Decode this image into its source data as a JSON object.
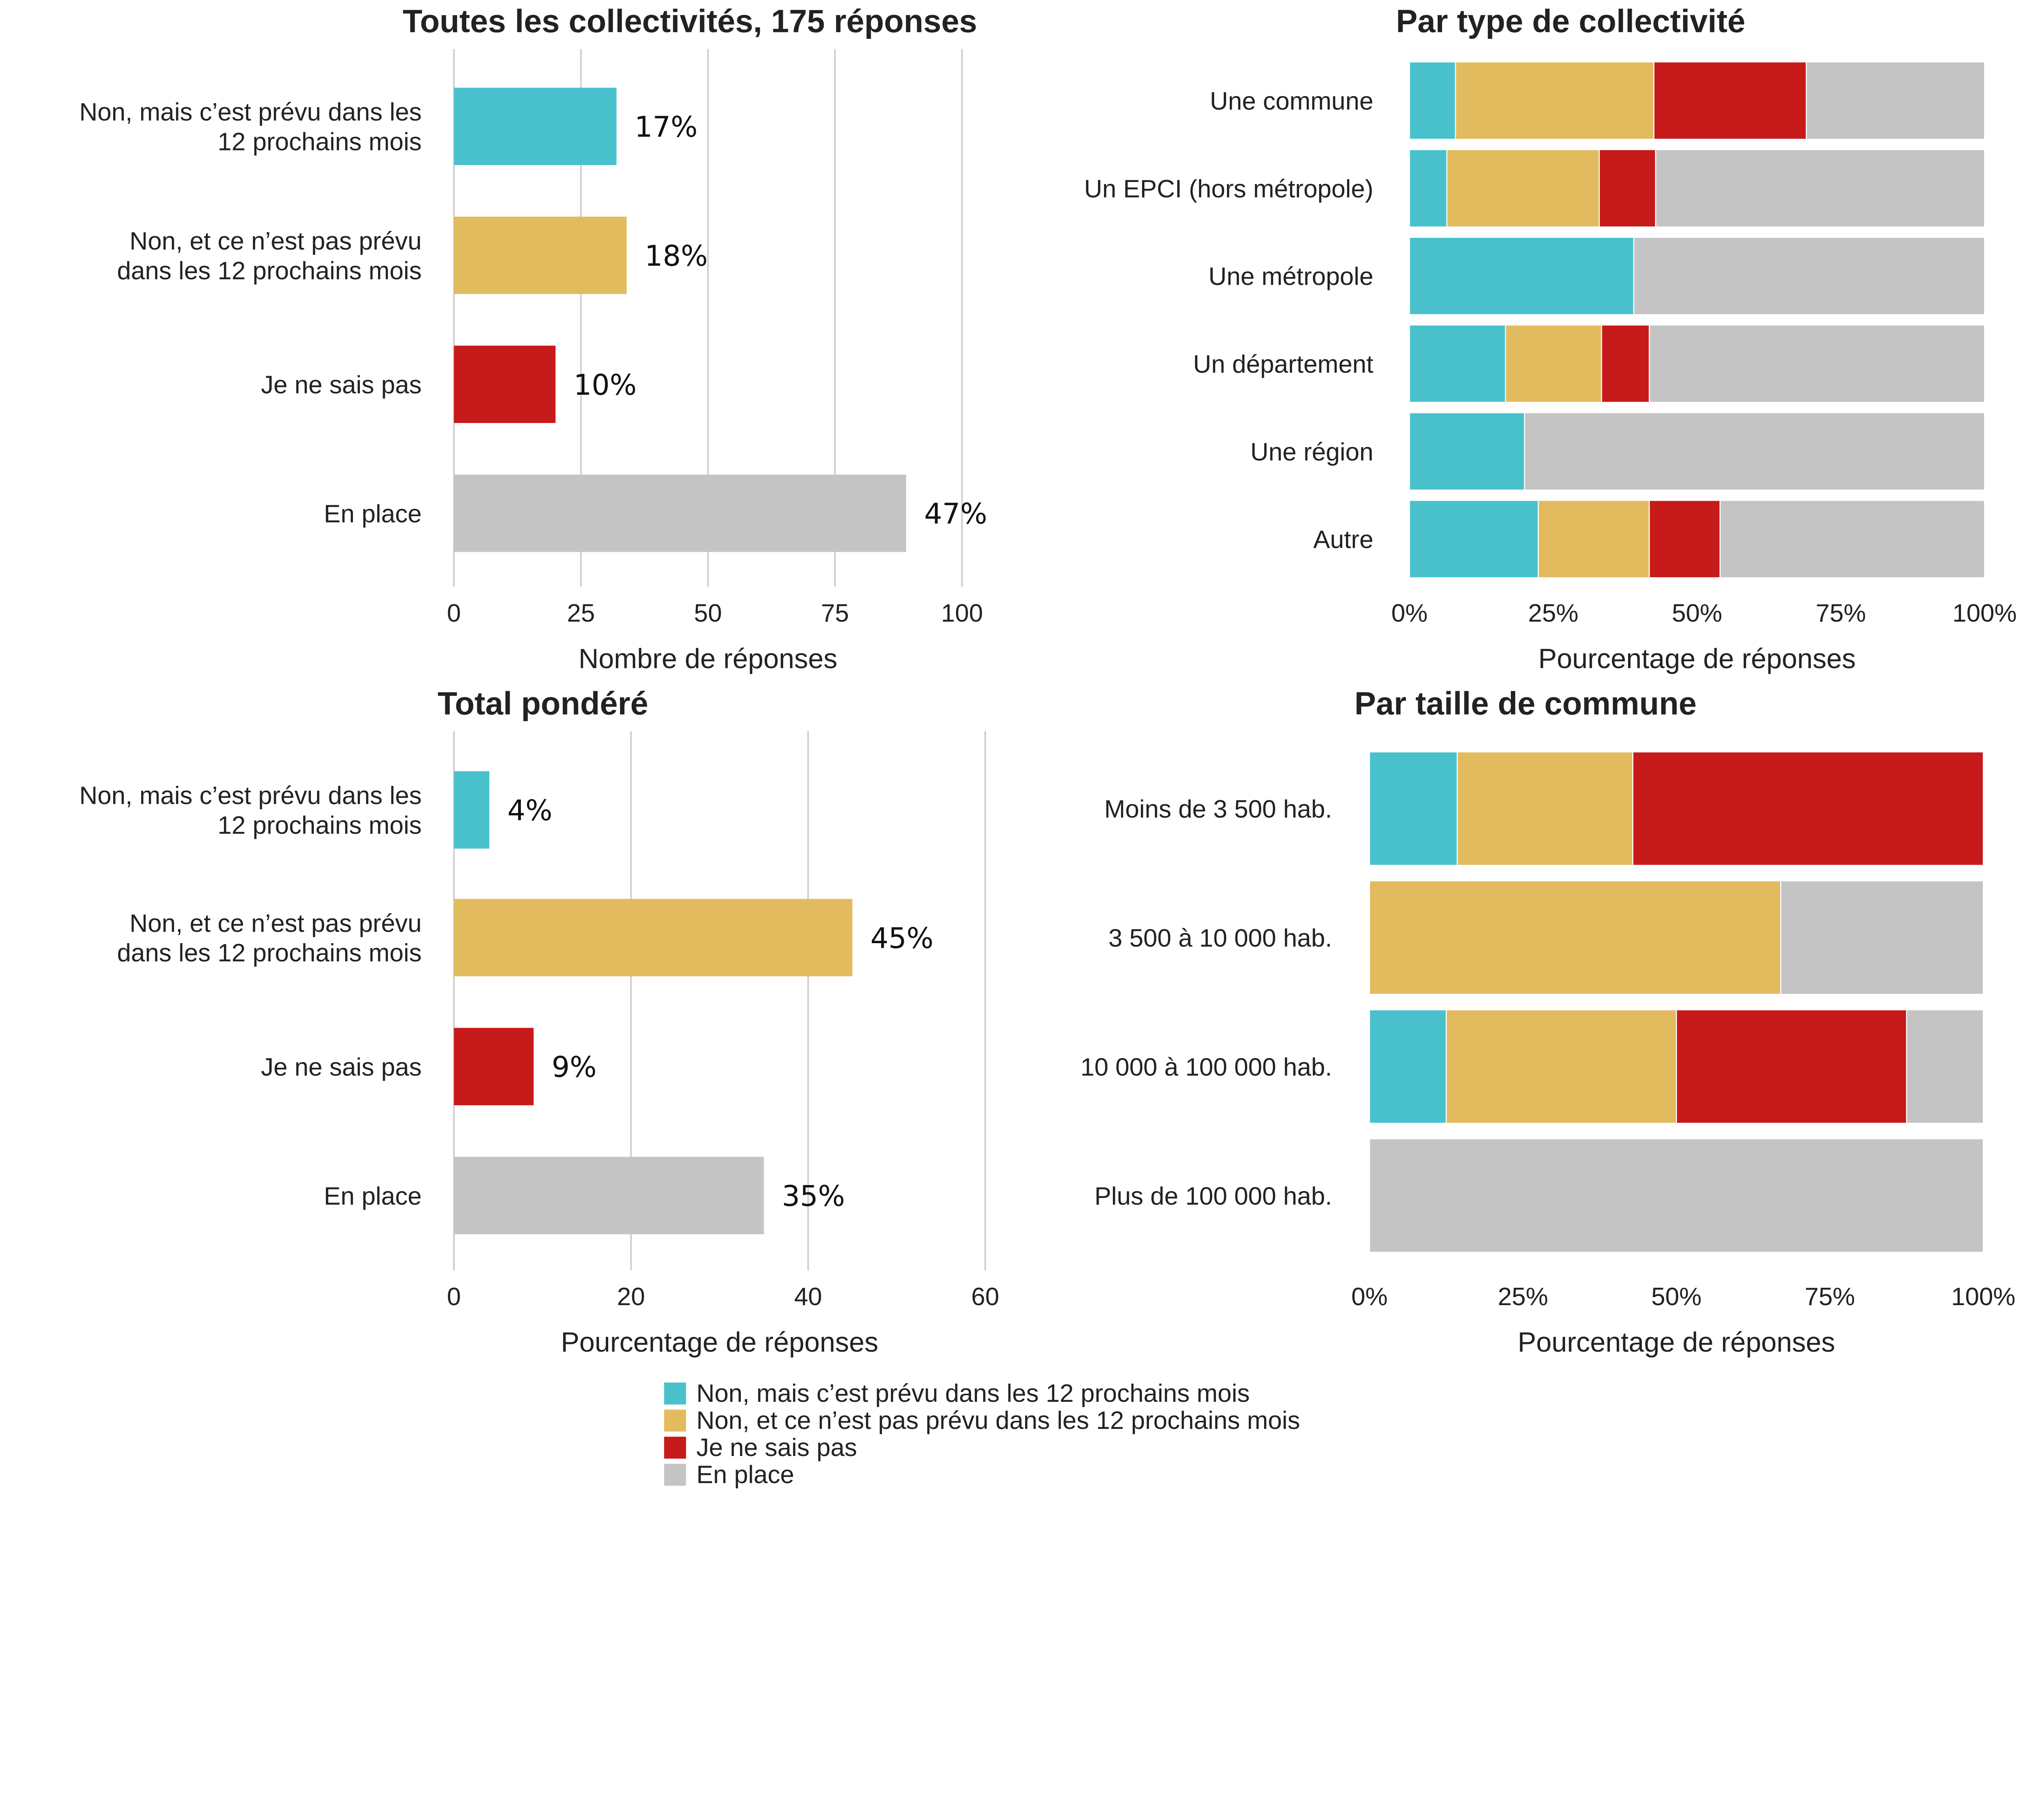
{
  "colors": {
    "Non, mais c’est prévu dans les 12 prochains mois": "#48c1cd",
    "Non, et ce n’est pas prévu dans les 12 prochains mois": "#e3bb5f",
    "Je ne sais pas": "#c61a1b",
    "En place": "#c4c4c4"
  },
  "legend": [
    "Non, mais c’est prévu dans les 12 prochains mois",
    "Non, et ce n’est pas prévu dans les 12 prochains mois",
    "Je ne sais pas",
    "En place"
  ],
  "chart_data": [
    {
      "type": "bar",
      "orientation": "horizontal",
      "title": "Toutes les collectivités, 175 réponses",
      "categories": [
        "Non, mais c’est prévu dans les\n12 prochains mois",
        "Non, et ce n’est pas prévu\ndans les 12 prochains mois",
        "Je ne sais pas",
        "En place"
      ],
      "values": [
        32,
        34,
        20,
        89
      ],
      "data_labels": [
        "17%",
        "18%",
        "10%",
        "47%"
      ],
      "xlabel": "Nombre de réponses",
      "xlim": [
        0,
        100
      ],
      "ticks": [
        0,
        25,
        50,
        75,
        100
      ],
      "tick_labels": [
        "0",
        "25",
        "50",
        "75",
        "100"
      ],
      "grid": true
    },
    {
      "type": "bar",
      "orientation": "horizontal",
      "stacked": true,
      "title": "Par type de collectivité",
      "categories": [
        "Une commune",
        "Un EPCI (hors métropole)",
        "Une métropole",
        "Un département",
        "Une région",
        "Autre"
      ],
      "series": [
        {
          "name": "Non, mais c’est prévu dans les 12 prochains mois",
          "values": [
            8,
            6.5,
            39,
            16.7,
            20,
            22.4
          ]
        },
        {
          "name": "Non, et ce n’est pas prévu dans les 12 prochains mois",
          "values": [
            34.5,
            26.5,
            0,
            16.7,
            0,
            19.3
          ]
        },
        {
          "name": "Je ne sais pas",
          "values": [
            26.5,
            9.8,
            0,
            8.3,
            0,
            12.3
          ]
        },
        {
          "name": "En place",
          "values": [
            31,
            57.2,
            61,
            58.3,
            80,
            46
          ]
        }
      ],
      "xlabel": "Pourcentage de réponses",
      "xlim": [
        0,
        100
      ],
      "ticks": [
        0,
        25,
        50,
        75,
        100
      ],
      "tick_labels": [
        "0%",
        "25%",
        "50%",
        "75%",
        "100%"
      ],
      "grid": false
    },
    {
      "type": "bar",
      "orientation": "horizontal",
      "title": "Total pondéré",
      "categories": [
        "Non, mais c’est prévu dans les\n12 prochains mois",
        "Non, et ce n’est pas prévu\ndans les 12 prochains mois",
        "Je ne sais pas",
        "En place"
      ],
      "values": [
        4,
        45,
        9,
        35
      ],
      "data_labels": [
        "4%",
        "45%",
        "9%",
        "35%"
      ],
      "xlabel": "Pourcentage de réponses",
      "xlim": [
        0,
        60
      ],
      "ticks": [
        0,
        20,
        40,
        60
      ],
      "tick_labels": [
        "0",
        "20",
        "40",
        "60"
      ],
      "grid": true
    },
    {
      "type": "bar",
      "orientation": "horizontal",
      "stacked": true,
      "title": "Par taille de commune",
      "categories": [
        "Moins de 3 500 hab.",
        "3 500 à 10 000 hab.",
        "10 000 à 100 000 hab.",
        "Plus de 100 000 hab."
      ],
      "series": [
        {
          "name": "Non, mais c’est prévu dans les 12 prochains mois",
          "values": [
            14.3,
            0,
            12.5,
            0
          ]
        },
        {
          "name": "Non, et ce n’est pas prévu dans les 12 prochains mois",
          "values": [
            28.6,
            67,
            37.5,
            0
          ]
        },
        {
          "name": "Je ne sais pas",
          "values": [
            57.1,
            0,
            37.5,
            0
          ]
        },
        {
          "name": "En place",
          "values": [
            0,
            33,
            12.5,
            100
          ]
        }
      ],
      "xlabel": "Pourcentage de réponses",
      "xlim": [
        0,
        100
      ],
      "ticks": [
        0,
        25,
        50,
        75,
        100
      ],
      "tick_labels": [
        "0%",
        "25%",
        "50%",
        "75%",
        "100%"
      ],
      "grid": false
    }
  ]
}
